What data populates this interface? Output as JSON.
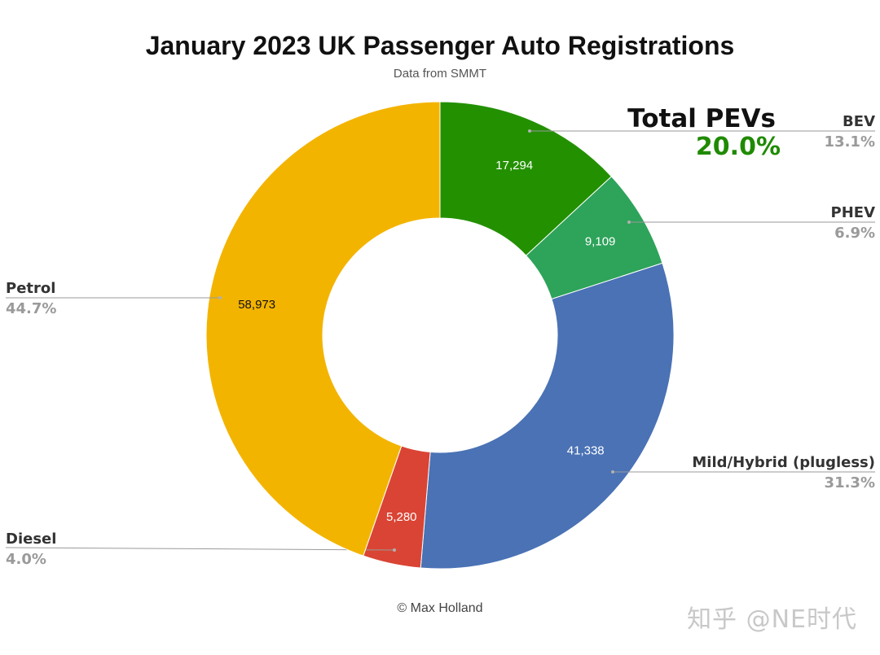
{
  "chart_data": {
    "type": "pie",
    "title": "January 2023 UK Passenger Auto Registrations",
    "subtitle": "Data from SMMT",
    "slices": [
      {
        "name": "BEV",
        "value": 17294,
        "value_label": "17,294",
        "percent_label": "13.1%",
        "color": "#239000"
      },
      {
        "name": "PHEV",
        "value": 9109,
        "value_label": "9,109",
        "percent_label": "6.9%",
        "color": "#2ea35a"
      },
      {
        "name": "Mild/Hybrid (plugless)",
        "value": 41338,
        "value_label": "41,338",
        "percent_label": "31.3%",
        "color": "#4a72b5"
      },
      {
        "name": "Diesel",
        "value": 5280,
        "value_label": "5,280",
        "percent_label": "4.0%",
        "color": "#da4434"
      },
      {
        "name": "Petrol",
        "value": 58973,
        "value_label": "58,973",
        "percent_label": "44.7%",
        "color": "#f3b400"
      }
    ],
    "annotation": {
      "label": "Total PEVs",
      "value": "20.0%",
      "color": "#1f8a00"
    }
  },
  "footer": {
    "credit": "© Max Holland",
    "watermark": "知乎 @NE时代"
  }
}
